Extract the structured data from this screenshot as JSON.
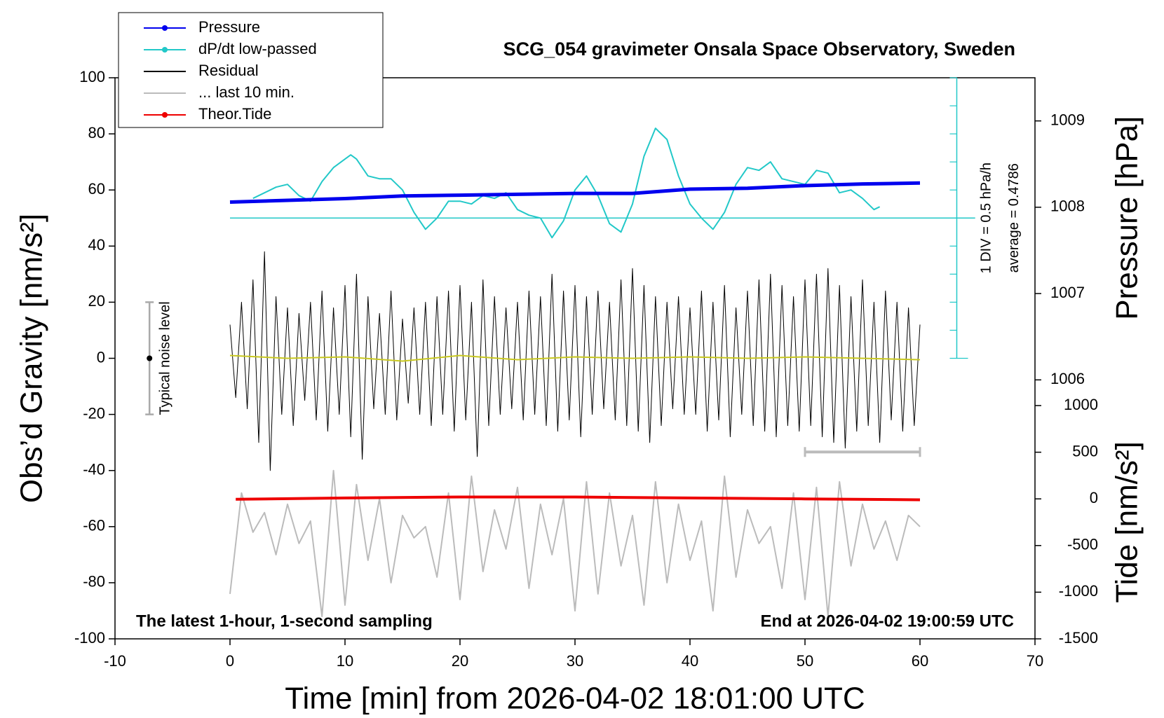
{
  "chart_data": {
    "type": "line",
    "title": "SCG_054 gravimeter Onsala Space Observatory, Sweden",
    "x_label": "Time [min] from 2026-04-02 18:01:00 UTC",
    "y_label": "Obs’d Gravity [nm/s²]",
    "y2_label": "Pressure [hPa]",
    "y3_label": "Tide [nm/s²]",
    "xlim": [
      -10,
      70
    ],
    "xticks": [
      -10,
      0,
      10,
      20,
      30,
      40,
      50,
      60,
      70
    ],
    "ylim": [
      -100,
      100
    ],
    "yticks": [
      -100,
      -80,
      -60,
      -40,
      -20,
      0,
      20,
      40,
      60,
      80,
      100
    ],
    "y2lim": [
      1003,
      1009.5
    ],
    "y2ticks": [
      1006,
      1007,
      1008,
      1009
    ],
    "y3lim": [
      -1500,
      4513
    ],
    "y3ticks": [
      -1500,
      -1000,
      -500,
      0,
      500,
      1000
    ],
    "dpdt_scale_label": "1 DIV = 0.5 hPa/h",
    "dpdt_average_label": "average = 0.4786",
    "noise_label": "Typical noise level",
    "note_left": "The latest 1-hour, 1-second sampling",
    "note_right": "End at 2026-04-02 19:00:59 UTC",
    "last_window_x": [
      50,
      60
    ],
    "series": [
      {
        "name": "Pressure",
        "color": "#0000ee",
        "axis": "y2",
        "marker": true,
        "x": [
          0,
          5,
          10,
          15,
          20,
          25,
          30,
          35,
          40,
          45,
          50,
          55,
          60
        ],
        "values": [
          1008.06,
          1008.08,
          1008.1,
          1008.13,
          1008.14,
          1008.15,
          1008.16,
          1008.16,
          1008.21,
          1008.22,
          1008.25,
          1008.27,
          1008.28
        ]
      },
      {
        "name": "dP/dt low-passed",
        "color": "#22c8c8",
        "axis": "y",
        "marker": true,
        "x": [
          2,
          4,
          5,
          6,
          7,
          8,
          9,
          10,
          10.5,
          11,
          12,
          13,
          14,
          15,
          16,
          17,
          18,
          19,
          20,
          21,
          22,
          23,
          24,
          25,
          26,
          27,
          28,
          29,
          30,
          31,
          32,
          33,
          34,
          35,
          36,
          37,
          38,
          39,
          40,
          41,
          42,
          43,
          44,
          45,
          46,
          47,
          48,
          49,
          50,
          51,
          52,
          53,
          54,
          55,
          56,
          56.5
        ],
        "values": [
          57,
          61,
          62,
          58,
          56,
          63,
          68,
          71,
          72.5,
          71,
          65,
          64,
          64,
          60,
          52,
          46,
          50,
          56,
          56,
          55,
          58,
          57,
          59,
          53,
          51,
          50,
          43,
          49,
          60,
          65,
          58,
          48,
          45,
          55,
          72,
          82,
          78,
          65,
          55,
          50,
          46,
          52,
          62,
          68,
          67,
          70,
          64,
          63,
          62,
          67,
          66,
          59,
          60,
          57,
          53,
          54
        ]
      },
      {
        "name": "Residual",
        "color": "#000000",
        "axis": "y",
        "marker": false,
        "x": [
          0,
          0.5,
          1,
          1.5,
          2,
          2.5,
          3,
          3.5,
          4,
          4.5,
          5,
          5.5,
          6,
          6.5,
          7,
          7.5,
          8,
          8.5,
          9,
          9.5,
          10,
          10.5,
          11,
          11.5,
          12,
          12.5,
          13,
          13.5,
          14,
          14.5,
          15,
          15.5,
          16,
          16.5,
          17,
          17.5,
          18,
          18.5,
          19,
          19.5,
          20,
          20.5,
          21,
          21.5,
          22,
          22.5,
          23,
          23.5,
          24,
          24.5,
          25,
          25.5,
          26,
          26.5,
          27,
          27.5,
          28,
          28.5,
          29,
          29.5,
          30,
          30.5,
          31,
          31.5,
          32,
          32.5,
          33,
          33.5,
          34,
          34.5,
          35,
          35.5,
          36,
          36.5,
          37,
          37.5,
          38,
          38.5,
          39,
          39.5,
          40,
          40.5,
          41,
          41.5,
          42,
          42.5,
          43,
          43.5,
          44,
          44.5,
          45,
          45.5,
          46,
          46.5,
          47,
          47.5,
          48,
          48.5,
          49,
          49.5,
          50,
          50.5,
          51,
          51.5,
          52,
          52.5,
          53,
          53.5,
          54,
          54.5,
          55,
          55.5,
          56,
          56.5,
          57,
          57.5,
          58,
          58.5,
          59,
          59.5,
          60
        ],
        "values": [
          12,
          -14,
          20,
          -18,
          28,
          -30,
          38,
          -40,
          22,
          -20,
          18,
          -24,
          16,
          -15,
          20,
          -22,
          24,
          -26,
          18,
          -20,
          26,
          -28,
          30,
          -36,
          22,
          -18,
          16,
          -20,
          24,
          -22,
          14,
          -16,
          18,
          -20,
          20,
          -24,
          22,
          -20,
          24,
          -26,
          26,
          -22,
          20,
          -35,
          28,
          -24,
          22,
          -20,
          18,
          -18,
          20,
          -22,
          24,
          -20,
          22,
          -24,
          30,
          -26,
          24,
          -22,
          26,
          -28,
          22,
          -20,
          24,
          -18,
          20,
          -22,
          28,
          -24,
          32,
          -26,
          26,
          -30,
          22,
          -24,
          20,
          -18,
          22,
          -20,
          18,
          -20,
          24,
          -26,
          20,
          -22,
          26,
          -28,
          18,
          -20,
          24,
          -24,
          28,
          -26,
          30,
          -28,
          26,
          -24,
          22,
          -26,
          28,
          -24,
          30,
          -28,
          32,
          -30,
          26,
          -32,
          22,
          -26,
          28,
          -24,
          20,
          -30,
          24,
          -22,
          20,
          -26,
          18,
          -24,
          12
        ]
      },
      {
        "name": "... last 10 min.",
        "color": "#bbbbbb",
        "axis": "y",
        "marker": false,
        "x": [
          0,
          1,
          2,
          3,
          4,
          5,
          6,
          7,
          8,
          9,
          10,
          11,
          12,
          13,
          14,
          15,
          16,
          17,
          18,
          19,
          20,
          21,
          22,
          23,
          24,
          25,
          26,
          27,
          28,
          29,
          30,
          31,
          32,
          33,
          34,
          35,
          36,
          37,
          38,
          39,
          40,
          41,
          42,
          43,
          44,
          45,
          46,
          47,
          48,
          49,
          50,
          51,
          52,
          53,
          54,
          55,
          56,
          57,
          58,
          59,
          60
        ],
        "values": [
          -84,
          -48,
          -62,
          -55,
          -70,
          -52,
          -66,
          -58,
          -92,
          -40,
          -88,
          -45,
          -72,
          -50,
          -80,
          -56,
          -64,
          -60,
          -78,
          -48,
          -86,
          -42,
          -76,
          -54,
          -68,
          -46,
          -82,
          -52,
          -70,
          -50,
          -90,
          -44,
          -84,
          -48,
          -74,
          -56,
          -88,
          -44,
          -80,
          -52,
          -72,
          -58,
          -90,
          -42,
          -78,
          -54,
          -66,
          -60,
          -82,
          -48,
          -86,
          -46,
          -92,
          -44,
          -74,
          -52,
          -68,
          -58,
          -72,
          -56,
          -60
        ]
      },
      {
        "name": "Theor.Tide",
        "color": "#ee0000",
        "axis": "y3",
        "marker": true,
        "x": [
          0.5,
          10,
          20,
          30,
          40,
          50,
          60
        ],
        "values": [
          -5,
          10,
          20,
          20,
          10,
          0,
          -10
        ]
      },
      {
        "color": "#c8c820",
        "axis": "y",
        "marker": false,
        "x": [
          0,
          5,
          10,
          15,
          20,
          25,
          30,
          35,
          40,
          45,
          50,
          55,
          60
        ],
        "values": [
          1,
          0,
          0.5,
          -1,
          1,
          -0.5,
          0.5,
          0,
          0.5,
          0,
          0.5,
          0,
          -0.5
        ]
      }
    ]
  }
}
